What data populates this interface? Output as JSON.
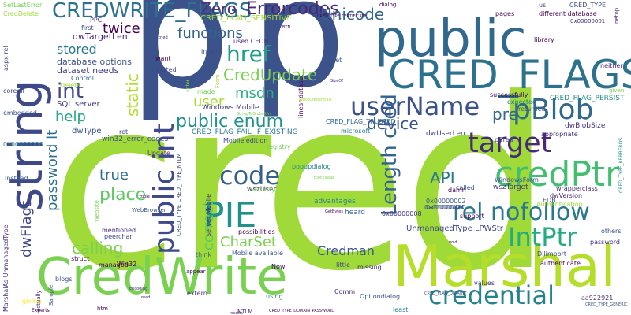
{
  "words": [
    {
      "text": "cred",
      "color": "#a0da39"
    },
    {
      "text": "p",
      "color": "#3b528b"
    },
    {
      "text": "public",
      "color": "#31688e"
    },
    {
      "text": "CREDWRITE_FLAGS",
      "color": "#2c718e"
    },
    {
      "text": "CRED_FLAGS",
      "color": "#2c728e"
    },
    {
      "text": "CredWrite",
      "color": "#7ad151"
    },
    {
      "text": "Marshal",
      "color": "#b5de2b"
    },
    {
      "text": "string",
      "color": "#3e4989"
    },
    {
      "text": "userName",
      "color": "#3b528b"
    },
    {
      "text": "pBlob",
      "color": "#31688e"
    },
    {
      "text": "credPtr",
      "color": "#42be71"
    },
    {
      "text": "credential",
      "color": "#26828e"
    },
    {
      "text": "target",
      "color": "#482878"
    },
    {
      "text": "IntPtr",
      "color": "#25ab82"
    },
    {
      "text": "PIE",
      "color": "#21918c"
    },
    {
      "text": "public int",
      "color": "#3e4a89"
    },
    {
      "text": "CredUpdate",
      "color": "#7ad151"
    },
    {
      "text": "code",
      "color": "#355f8d"
    },
    {
      "text": "rel nofollow",
      "color": "#2a788e"
    },
    {
      "text": "Length cred",
      "color": "#33638d"
    },
    {
      "text": "public enum",
      "color": "#21918c"
    },
    {
      "text": "href",
      "color": "#1f9e89"
    },
    {
      "text": "int",
      "color": "#3f4889"
    },
    {
      "text": "Errorcodes",
      "color": "#482878"
    },
    {
      "text": "Unicode",
      "color": "#31688e"
    },
    {
      "text": "Zero",
      "color": "#46327e"
    },
    {
      "text": "functions",
      "color": "#33638d"
    },
    {
      "text": "stored",
      "color": "#2a788e"
    },
    {
      "text": "twice",
      "color": "#440154"
    },
    {
      "text": "msdn",
      "color": "#2ab07f"
    },
    {
      "text": "static",
      "color": "#b5de2b"
    },
    {
      "text": "user",
      "color": "#a8db34"
    },
    {
      "text": "help",
      "color": "#22a884"
    },
    {
      "text": "pre",
      "color": "#31688e"
    },
    {
      "text": "device",
      "color": "#39558c"
    },
    {
      "text": "API",
      "color": "#2a788e"
    },
    {
      "text": "true",
      "color": "#2f6c8e"
    },
    {
      "text": "place",
      "color": "#5ec962"
    },
    {
      "text": "password lt",
      "color": "#2c728e"
    },
    {
      "text": "dwFlags",
      "color": "#404688"
    },
    {
      "text": "CharSet",
      "color": "#7ad151"
    },
    {
      "text": "correct",
      "color": "#5ec962"
    },
    {
      "text": "calling",
      "color": "#7ad151"
    },
    {
      "text": "Credman",
      "color": "#39568c"
    },
    {
      "text": "UnmanagedType LPWStr",
      "color": "#3e4989"
    },
    {
      "text": "CRED_FLAG_SENSITIVE",
      "color": "#a8db34"
    },
    {
      "text": "database options",
      "color": "#3b528b"
    },
    {
      "text": "dataset needs",
      "color": "#433e85"
    },
    {
      "text": "dwTargetLen",
      "color": "#482677"
    },
    {
      "text": "Windows Mobile",
      "color": "#443983"
    },
    {
      "text": "SQL server",
      "color": "#443a83"
    },
    {
      "text": "CRED_FLAG_TRUSTED",
      "color": "#31688e"
    },
    {
      "text": "CRED_FLAG_FAIL_IF_EXISTING",
      "color": "#2a788e"
    },
    {
      "text": "CRED_FLAG_PERSIST",
      "color": "#23888e"
    },
    {
      "text": "dwBlobSize",
      "color": "#46327e"
    },
    {
      "text": "dwUserLen",
      "color": "#414487"
    },
    {
      "text": "win32_error_codes",
      "color": "#3d4e8a"
    },
    {
      "text": "Mobile edition",
      "color": "#3f4788"
    },
    {
      "text": "wszTarget",
      "color": "#46327e"
    },
    {
      "text": "wszUser",
      "color": "#482576"
    },
    {
      "text": "dwType",
      "color": "#3b528b"
    },
    {
      "text": "SetLastError",
      "color": "#70cf57"
    },
    {
      "text": "CredDelete",
      "color": "#a0da39"
    },
    {
      "text": "MarshalAs UnmanagedType",
      "color": "#472d7b"
    },
    {
      "text": "aspx rel",
      "color": "#414487"
    },
    {
      "text": "coredll",
      "color": "#3e4989"
    },
    {
      "text": "embedded",
      "color": "#3b528b"
    },
    {
      "text": "Instead",
      "color": "#34618d"
    },
    {
      "text": "struct",
      "color": "#481a6c"
    },
    {
      "text": "blogs",
      "color": "#3b528b"
    },
    {
      "text": "Win32",
      "color": "#440154"
    },
    {
      "text": "giving",
      "color": "#fde725"
    },
    {
      "text": "Control",
      "color": "#34618d"
    },
    {
      "text": "linear dataset",
      "color": "#440154"
    },
    {
      "text": "used CEDB",
      "color": "#482475"
    },
    {
      "text": "intern",
      "color": "#3e4a89"
    },
    {
      "text": "want",
      "color": "#440154"
    },
    {
      "text": "inputted",
      "color": "#3e4989"
    },
    {
      "text": "made",
      "color": "#70cf57"
    },
    {
      "text": "Update",
      "color": "#46337f"
    },
    {
      "text": "Security",
      "color": "#70cf57"
    },
    {
      "text": "registry",
      "color": "#70cf57"
    },
    {
      "text": "popupdialog",
      "color": "#25848e"
    },
    {
      "text": "advantages",
      "color": "#24868e"
    },
    {
      "text": "heard",
      "color": "#33638d"
    },
    {
      "text": "possibilities",
      "color": "#440154"
    },
    {
      "text": "Mobile available",
      "color": "#3b528b"
    },
    {
      "text": "server Mobile",
      "color": "#482677"
    },
    {
      "text": "mentioned",
      "color": "#472c7a"
    },
    {
      "text": "peerchan",
      "color": "#3e4989"
    },
    {
      "text": "think",
      "color": "#33638d"
    },
    {
      "text": "little",
      "color": "#3f4889"
    },
    {
      "text": "missing",
      "color": "#482878"
    },
    {
      "text": "using",
      "color": "#2a788e"
    },
    {
      "text": "Now",
      "color": "#440154"
    },
    {
      "text": "Comm",
      "color": "#482878"
    },
    {
      "text": "Optiondialog",
      "color": "#3b528b"
    },
    {
      "text": "least",
      "color": "#287c8e"
    },
    {
      "text": "values",
      "color": "#46327e"
    },
    {
      "text": "microsoft",
      "color": "#2a788e"
    },
    {
      "text": "called",
      "color": "#3b528b"
    },
    {
      "text": "support",
      "color": "#440154"
    },
    {
      "text": "EDB",
      "color": "#3e4a89"
    },
    {
      "text": "damn",
      "color": "#440154"
    },
    {
      "text": "dwVersion",
      "color": "#482878"
    },
    {
      "text": "Dllimport",
      "color": "#3e4989"
    },
    {
      "text": "authenticate",
      "color": "#440154"
    },
    {
      "text": "password",
      "color": "#46327e"
    },
    {
      "text": "others",
      "color": "#3b528b"
    },
    {
      "text": "wrapperclass",
      "color": "#482878"
    },
    {
      "text": "WindowsForm",
      "color": "#3b528b"
    },
    {
      "text": "pCred",
      "color": "#3b528b"
    },
    {
      "text": "appropriate",
      "color": "#46327e"
    },
    {
      "text": "returned",
      "color": "#3b528b"
    },
    {
      "text": "expected",
      "color": "#2a788e"
    },
    {
      "text": "successfully",
      "color": "#440154"
    },
    {
      "text": "library",
      "color": "#440154"
    },
    {
      "text": "neither",
      "color": "#482878"
    },
    {
      "text": "different database",
      "color": "#440154"
    },
    {
      "text": "CRED_TYPE",
      "color": "#3e4a89"
    },
    {
      "text": "pages",
      "color": "#440154"
    },
    {
      "text": "first",
      "color": "#3b528b"
    },
    {
      "text": "PPC",
      "color": "#482878"
    },
    {
      "text": "dialog",
      "color": "#440154"
    },
    {
      "text": "us",
      "color": "#3b528b"
    },
    {
      "text": "let",
      "color": "#3b528b"
    },
    {
      "text": "0x00000001",
      "color": "#482878"
    },
    {
      "text": "0x00000002",
      "color": "#3b528b"
    },
    {
      "text": "0x00000004",
      "color": "#3b528b"
    },
    {
      "text": "0x00000006",
      "color": "#2a788e"
    },
    {
      "text": "0x00000400",
      "color": "#3b528b"
    },
    {
      "text": "0x00000008",
      "color": "#46327e"
    },
    {
      "text": "Authentication",
      "color": "#a0da39"
    },
    {
      "text": "aa922921",
      "color": "#46327e"
    },
    {
      "text": "Experts",
      "color": "#440154"
    },
    {
      "text": "Sample",
      "color": "#3b528b"
    },
    {
      "text": "Website",
      "color": "#7ad151"
    },
    {
      "text": "extern",
      "color": "#46327e"
    },
    {
      "text": "managed",
      "color": "#440154"
    },
    {
      "text": "htm",
      "color": "#440154"
    },
    {
      "text": "ret",
      "color": "#3b528b"
    },
    {
      "text": "Delete",
      "color": "#a0da39"
    },
    {
      "text": "Form",
      "color": "#a0da39"
    },
    {
      "text": "appear",
      "color": "#440154"
    },
    {
      "text": "actually",
      "color": "#482878"
    },
    {
      "text": "given",
      "color": "#7ad151"
    },
    {
      "text": "netop",
      "color": "#482878"
    },
    {
      "text": "CRED_TYPE_CERTIFICATE",
      "color": "#440154"
    },
    {
      "text": "CRED_TYPE_GENERIC",
      "color": "#3b528b"
    },
    {
      "text": "CRED_TYPE_KERBEROS",
      "color": "#21918c"
    },
    {
      "text": "CRED_TYPE CRED_TYPE_NTLM",
      "color": "#3e4989"
    },
    {
      "text": "CRED_TYPE_DOMAIN_PASSWORD",
      "color": "#440154"
    },
    {
      "text": "CRED_FLAG_DEFAULT",
      "color": "#3b528b"
    },
    {
      "text": "NTLM",
      "color": "#46327e"
    },
    {
      "text": "results",
      "color": "#440154"
    },
    {
      "text": "WriteCredentials",
      "color": "#a0da39"
    },
    {
      "text": "StringToGlobalUni",
      "color": "#7ad151"
    },
    {
      "text": "GetBytes",
      "color": "#440154"
    },
    {
      "text": "tuple",
      "color": "#440154"
    },
    {
      "text": "Encoding",
      "color": "#46327e"
    },
    {
      "text": "read",
      "color": "#440154"
    },
    {
      "text": "void",
      "color": "#440154"
    },
    {
      "text": "SizeOf",
      "color": "#46327e"
    },
    {
      "text": "enter",
      "color": "#a0da39"
    },
    {
      "text": "tried",
      "color": "#482878"
    },
    {
      "text": "BTN",
      "color": "#440154"
    },
    {
      "text": "WebBrowser",
      "color": "#3b528b"
    },
    {
      "text": "Blocklocal",
      "color": "#7ad151"
    }
  ]
}
